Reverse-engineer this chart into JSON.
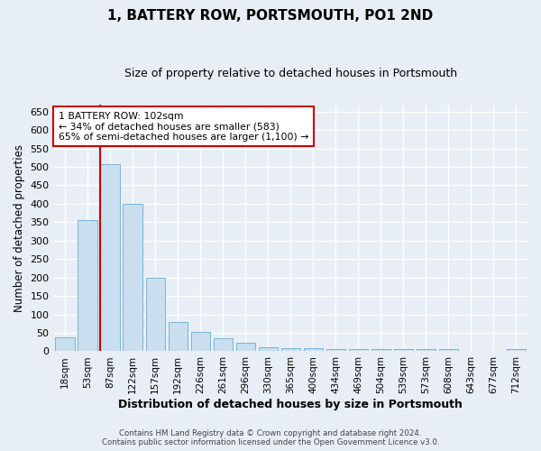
{
  "title": "1, BATTERY ROW, PORTSMOUTH, PO1 2ND",
  "subtitle": "Size of property relative to detached houses in Portsmouth",
  "xlabel": "Distribution of detached houses by size in Portsmouth",
  "ylabel": "Number of detached properties",
  "categories": [
    "18sqm",
    "53sqm",
    "87sqm",
    "122sqm",
    "157sqm",
    "192sqm",
    "226sqm",
    "261sqm",
    "296sqm",
    "330sqm",
    "365sqm",
    "400sqm",
    "434sqm",
    "469sqm",
    "504sqm",
    "539sqm",
    "573sqm",
    "608sqm",
    "643sqm",
    "677sqm",
    "712sqm"
  ],
  "values": [
    38,
    357,
    507,
    400,
    200,
    80,
    53,
    35,
    22,
    12,
    8,
    8,
    5,
    5,
    5,
    5,
    5,
    5,
    0,
    0,
    5
  ],
  "bar_color": "#c9dff0",
  "bar_edge_color": "#7ab3d4",
  "ylim": [
    0,
    670
  ],
  "yticks": [
    0,
    50,
    100,
    150,
    200,
    250,
    300,
    350,
    400,
    450,
    500,
    550,
    600,
    650
  ],
  "red_line_index": 2,
  "annotation_line1": "1 BATTERY ROW: 102sqm",
  "annotation_line2": "← 34% of detached houses are smaller (583)",
  "annotation_line3": "65% of semi-detached houses are larger (1,100) →",
  "annotation_box_color": "#ffffff",
  "annotation_box_edge_color": "#cc0000",
  "footer_line1": "Contains HM Land Registry data © Crown copyright and database right 2024.",
  "footer_line2": "Contains public sector information licensed under the Open Government Licence v3.0.",
  "background_color": "#e8eef5",
  "plot_bg_color": "#e8eef5",
  "grid_color": "#ffffff",
  "title_fontsize": 11,
  "subtitle_fontsize": 9,
  "bar_width": 0.85
}
